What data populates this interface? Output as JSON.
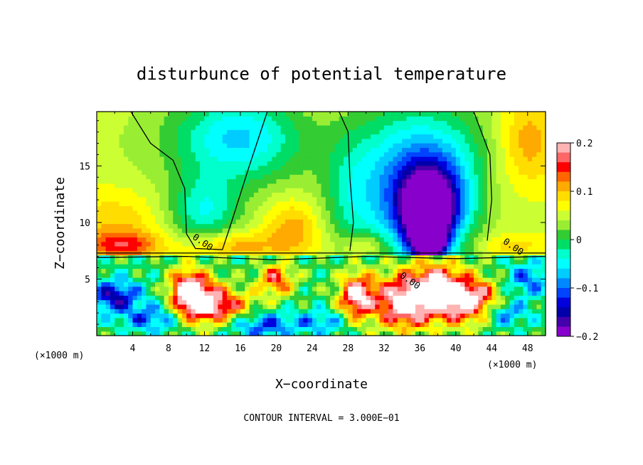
{
  "chart_data": {
    "type": "heatmap",
    "title": "disturbunce of potential temperature",
    "xlabel": "X−coordinate",
    "ylabel": "Z−coordinate",
    "x_unit": "(×1000 m)",
    "x_ticks": [
      "4",
      "8",
      "12",
      "16",
      "20",
      "24",
      "28",
      "32",
      "36",
      "40",
      "44",
      "48"
    ],
    "y_ticks": [
      "5",
      "10",
      "15"
    ],
    "xlim": [
      0,
      50
    ],
    "ylim": [
      0,
      19.8
    ],
    "contour_interval_text": "CONTOUR INTERVAL = 3.000E−01",
    "contour_label": "0.00",
    "colorbar": {
      "ticks": [
        "0.2",
        "0.1",
        "0",
        "−0.1",
        "−0.2"
      ],
      "range": [
        -0.2,
        0.2
      ],
      "colors": [
        "#ffb3b3",
        "#ff6666",
        "#ff0000",
        "#ff6600",
        "#ffaa00",
        "#ffdd00",
        "#ffff00",
        "#ccff33",
        "#99ee33",
        "#33cc33",
        "#00dd66",
        "#00ffcc",
        "#00ffff",
        "#00ccff",
        "#0088ff",
        "#0044ff",
        "#0000dd",
        "#0000aa",
        "#4400aa",
        "#8800cc"
      ]
    },
    "field_blobs": [
      {
        "x": 8,
        "z": 17,
        "rx": 14,
        "rz": 6,
        "v": 0.04
      },
      {
        "x": 16,
        "z": 17.5,
        "rx": 7,
        "rz": 4,
        "v": -0.05
      },
      {
        "x": 12,
        "z": 11,
        "rx": 4,
        "rz": 3,
        "v": -0.03
      },
      {
        "x": 2,
        "z": 10,
        "rx": 5,
        "rz": 3,
        "v": 0.1
      },
      {
        "x": 22,
        "z": 9.5,
        "rx": 3,
        "rz": 2.5,
        "v": 0.12
      },
      {
        "x": 25,
        "z": 16,
        "rx": 4,
        "rz": 4,
        "v": 0.06
      },
      {
        "x": 28,
        "z": 12,
        "rx": 2.5,
        "rz": 6,
        "v": 0.03
      },
      {
        "x": 36,
        "z": 13,
        "rx": 8,
        "rz": 7,
        "v": -0.12
      },
      {
        "x": 37,
        "z": 11,
        "rx": 3,
        "rz": 3.5,
        "v": -0.17
      },
      {
        "x": 37,
        "z": 8.5,
        "rx": 1.6,
        "rz": 1.6,
        "v": -0.2
      },
      {
        "x": 44,
        "z": 12,
        "rx": 3,
        "rz": 5,
        "v": 0.09
      },
      {
        "x": 48,
        "z": 17,
        "rx": 3,
        "rz": 4,
        "v": 0.12
      },
      {
        "x": 30,
        "z": 8,
        "rx": 3,
        "rz": 1.2,
        "v": 0.12
      },
      {
        "x": 40,
        "z": 9,
        "rx": 3,
        "rz": 1.5,
        "v": 0.08
      },
      {
        "x": 15,
        "z": 8,
        "rx": 5,
        "rz": 1.2,
        "v": 0.12
      },
      {
        "x": 3,
        "z": 8,
        "rx": 4,
        "rz": 1.2,
        "v": 0.14
      },
      {
        "x": 46,
        "z": 8,
        "rx": 4,
        "rz": 1.0,
        "v": 0.1
      }
    ],
    "lower_layer_blobs": [
      {
        "x": 2,
        "z": 3.5,
        "rx": 3,
        "rz": 1.5,
        "v": -0.15
      },
      {
        "x": 6,
        "z": 1.5,
        "rx": 3,
        "rz": 1.2,
        "v": -0.1
      },
      {
        "x": 10,
        "z": 4,
        "rx": 2,
        "rz": 2,
        "v": 0.2
      },
      {
        "x": 12,
        "z": 3,
        "rx": 2.5,
        "rz": 2,
        "v": 0.18
      },
      {
        "x": 15,
        "z": 2.5,
        "rx": 3,
        "rz": 1.6,
        "v": 0.12
      },
      {
        "x": 18,
        "z": 1,
        "rx": 4,
        "rz": 1.2,
        "v": -0.12
      },
      {
        "x": 20,
        "z": 5,
        "rx": 2,
        "rz": 1.5,
        "v": 0.15
      },
      {
        "x": 25,
        "z": 1.2,
        "rx": 3,
        "rz": 1.1,
        "v": -0.08
      },
      {
        "x": 29,
        "z": 3.5,
        "rx": 2,
        "rz": 2,
        "v": 0.22
      },
      {
        "x": 34,
        "z": 3,
        "rx": 3,
        "rz": 2.5,
        "v": 0.22
      },
      {
        "x": 38,
        "z": 4,
        "rx": 3,
        "rz": 2.5,
        "v": 0.22
      },
      {
        "x": 42,
        "z": 3,
        "rx": 3,
        "rz": 2,
        "v": 0.22
      },
      {
        "x": 45,
        "z": 2,
        "rx": 3,
        "rz": 1.2,
        "v": -0.12
      },
      {
        "x": 48,
        "z": 5,
        "rx": 2.5,
        "rz": 1.5,
        "v": -0.1
      }
    ]
  }
}
